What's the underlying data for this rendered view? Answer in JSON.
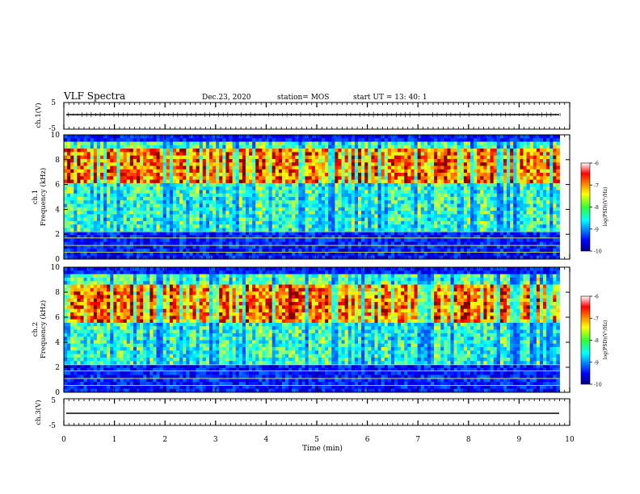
{
  "header": {
    "title": "VLF Spectra",
    "date": "Dec.23, 2020",
    "station": "station= MOS",
    "start": "start  UT  =   13: 40: 1"
  },
  "chart_data": [
    {
      "type": "line",
      "panel": "ch.1 waveform",
      "ylabel": "ch.1(V)",
      "ylim": [
        -5,
        5
      ],
      "y_ticks": [
        "5",
        "-5"
      ],
      "series_level": 0
    },
    {
      "type": "heatmap",
      "panel": "ch.1 spectrogram",
      "ylabel_top": "ch.1",
      "ylabel": "Frequency  (kHz)",
      "ylim": [
        0,
        10
      ],
      "y_ticks": [
        "0",
        "2",
        "4",
        "6",
        "8",
        "10"
      ],
      "active_time_range": [
        0,
        9.8
      ],
      "strong_band_khz": [
        6,
        9
      ],
      "colorbar": {
        "label": "log(PSD)(V²/Hz)",
        "ticks": [
          "-6",
          "-7",
          "-8",
          "-9",
          "-10"
        ],
        "range": [
          -10,
          -6
        ]
      }
    },
    {
      "type": "heatmap",
      "panel": "ch.2 spectrogram",
      "ylabel_top": "ch.2",
      "ylabel": "Frequency  (kHz)",
      "ylim": [
        0,
        10
      ],
      "y_ticks": [
        "0",
        "2",
        "4",
        "6",
        "8",
        "10"
      ],
      "active_time_range": [
        0,
        9.8
      ],
      "strong_band_khz": [
        5.5,
        8.5
      ],
      "colorbar": {
        "label": "log(PSD)(V²/Hz)",
        "ticks": [
          "-6",
          "-7",
          "-8",
          "-9",
          "-10"
        ],
        "range": [
          -10,
          -6
        ]
      }
    },
    {
      "type": "line",
      "panel": "ch.3 waveform",
      "ylabel": "ch.3(V)",
      "ylim": [
        -5,
        5
      ],
      "y_ticks": [
        "5",
        "-5"
      ],
      "series_level": 0
    }
  ],
  "xaxis": {
    "label": "Time  (min)",
    "xlim": [
      0,
      10
    ],
    "ticks": [
      "0",
      "1",
      "2",
      "3",
      "4",
      "5",
      "6",
      "7",
      "8",
      "9",
      "10"
    ]
  },
  "colors": {
    "spectrum_low": "#00007f",
    "spectrum_high": "#ff0000",
    "background": "#ffffff"
  }
}
